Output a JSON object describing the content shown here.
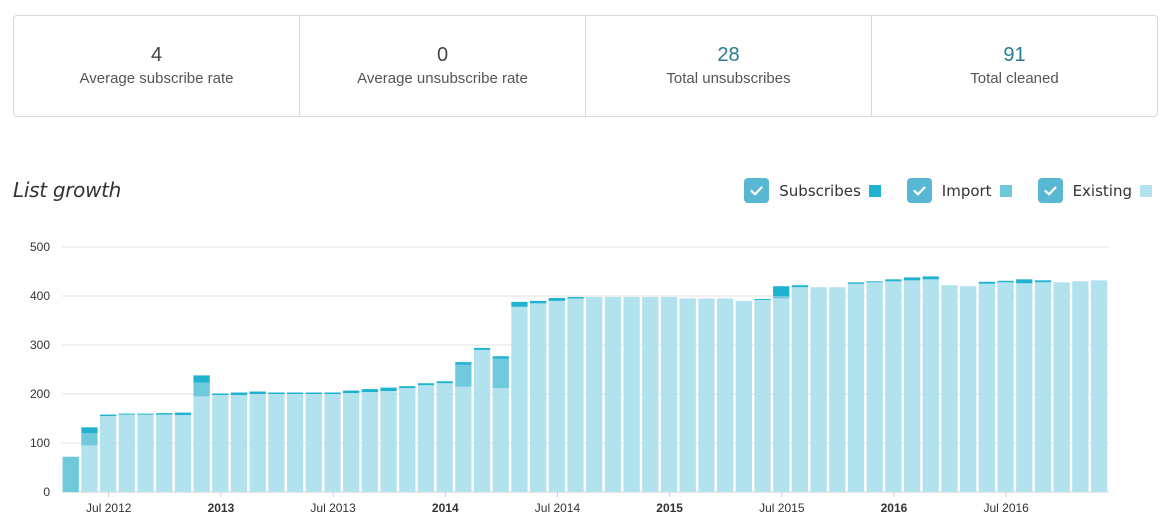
{
  "stats": [
    {
      "value": "4",
      "label": "Average subscribe rate",
      "link": false
    },
    {
      "value": "0",
      "label": "Average unsubscribe rate",
      "link": false
    },
    {
      "value": "28",
      "label": "Total unsubscribes",
      "link": true
    },
    {
      "value": "91",
      "label": "Total cleaned",
      "link": true
    }
  ],
  "chart_title": "List growth",
  "legend": [
    {
      "label": "Subscribes",
      "color": "#1fb2d1",
      "checked": true
    },
    {
      "label": "Import",
      "color": "#6fc9dd",
      "checked": true
    },
    {
      "label": "Existing",
      "color": "#b2e2ee",
      "checked": true
    }
  ],
  "colors": {
    "subscribes": "#1fb2d1",
    "import": "#6fc9dd",
    "existing": "#b2e2ee",
    "grid": "#e3e3e3",
    "checkbox": "#58b8d3"
  },
  "chart_data": {
    "type": "bar",
    "stacked": true,
    "ylim": [
      0,
      500
    ],
    "yticks": [
      0,
      100,
      200,
      300,
      400,
      500
    ],
    "x_start": "Feb 2012",
    "x_end": "Jul 2016",
    "x_tick_labels": [
      {
        "label": "Jul 2012",
        "bold": false,
        "index": 2
      },
      {
        "label": "2013",
        "bold": true,
        "index": 8
      },
      {
        "label": "Jul 2013",
        "bold": false,
        "index": 14
      },
      {
        "label": "2014",
        "bold": true,
        "index": 20
      },
      {
        "label": "Jul 2014",
        "bold": false,
        "index": 26
      },
      {
        "label": "2015",
        "bold": true,
        "index": 32
      },
      {
        "label": "Jul 2015",
        "bold": false,
        "index": 38
      },
      {
        "label": "2016",
        "bold": true,
        "index": 44
      },
      {
        "label": "Jul 2016",
        "bold": false,
        "index": 50
      }
    ],
    "series": [
      {
        "name": "Existing",
        "values": [
          0,
          95,
          155,
          158,
          158,
          158,
          157,
          195,
          198,
          198,
          200,
          200,
          200,
          200,
          200,
          202,
          204,
          206,
          212,
          218,
          222,
          215,
          290,
          212,
          378,
          385,
          390,
          395,
          398,
          398,
          398,
          398,
          398,
          395,
          395,
          395,
          390,
          392,
          395,
          418,
          418,
          418,
          425,
          428,
          430,
          432,
          434,
          422,
          420,
          425,
          428,
          426,
          428,
          428,
          430,
          432
        ]
      },
      {
        "name": "Import",
        "values": [
          72,
          25,
          0,
          0,
          0,
          0,
          0,
          28,
          0,
          0,
          0,
          0,
          0,
          0,
          0,
          0,
          0,
          0,
          0,
          0,
          0,
          45,
          0,
          60,
          0,
          0,
          0,
          0,
          0,
          0,
          0,
          0,
          0,
          0,
          0,
          0,
          0,
          0,
          5,
          0,
          0,
          0,
          0,
          0,
          0,
          0,
          0,
          0,
          0,
          0,
          0,
          0,
          0,
          0,
          0,
          0
        ]
      },
      {
        "name": "Subscribes",
        "values": [
          0,
          12,
          3,
          2,
          2,
          3,
          5,
          15,
          3,
          5,
          5,
          3,
          3,
          3,
          3,
          5,
          6,
          7,
          4,
          4,
          4,
          5,
          4,
          5,
          10,
          5,
          6,
          3,
          0,
          0,
          0,
          0,
          0,
          0,
          0,
          0,
          0,
          2,
          20,
          4,
          0,
          0,
          3,
          2,
          4,
          6,
          6,
          0,
          0,
          4,
          3,
          8,
          4,
          0,
          0,
          0
        ]
      }
    ]
  }
}
